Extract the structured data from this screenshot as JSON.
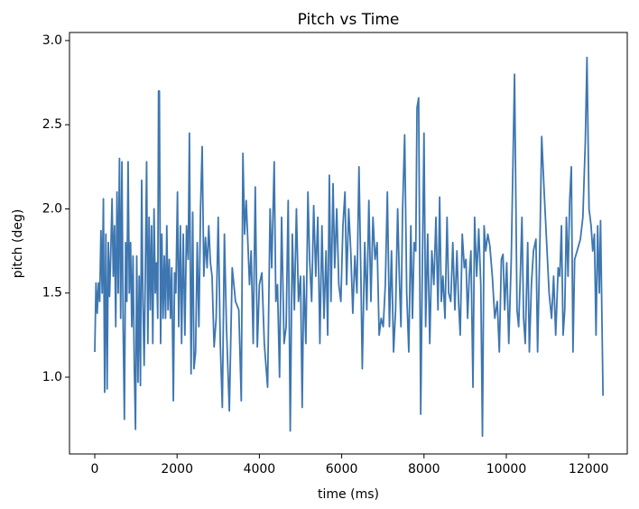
{
  "chart_data": {
    "type": "line",
    "title": "Pitch vs Time",
    "xlabel": "time (ms)",
    "ylabel": "pitch (deg)",
    "color": "#3d76b0",
    "xlim": [
      -614,
      12939
    ],
    "ylim": [
      0.544,
      3.048
    ],
    "xticks": [
      0,
      2000,
      4000,
      6000,
      8000,
      10000,
      12000
    ],
    "yticks": [
      {
        "value": 1,
        "label": "1.0"
      },
      1.5,
      {
        "value": 2,
        "label": "2.0"
      },
      2.5,
      {
        "value": 3,
        "label": "3.0"
      }
    ],
    "x": [
      0,
      30,
      60,
      90,
      120,
      150,
      180,
      210,
      240,
      270,
      300,
      330,
      360,
      390,
      420,
      450,
      480,
      510,
      540,
      570,
      600,
      630,
      660,
      690,
      720,
      750,
      780,
      810,
      840,
      870,
      900,
      930,
      960,
      990,
      1020,
      1050,
      1080,
      1110,
      1140,
      1170,
      1200,
      1230,
      1260,
      1290,
      1320,
      1350,
      1380,
      1410,
      1440,
      1470,
      1500,
      1530,
      1550,
      1570,
      1600,
      1630,
      1660,
      1690,
      1720,
      1750,
      1780,
      1810,
      1840,
      1870,
      1910,
      1940,
      1970,
      2010,
      2040,
      2080,
      2110,
      2150,
      2190,
      2230,
      2270,
      2300,
      2340,
      2380,
      2410,
      2450,
      2490,
      2530,
      2570,
      2610,
      2650,
      2690,
      2730,
      2770,
      2810,
      2850,
      2900,
      2950,
      3000,
      3050,
      3100,
      3150,
      3200,
      3270,
      3340,
      3420,
      3500,
      3560,
      3600,
      3640,
      3680,
      3720,
      3760,
      3800,
      3850,
      3900,
      3950,
      4000,
      4060,
      4120,
      4200,
      4260,
      4300,
      4360,
      4400,
      4440,
      4490,
      4540,
      4600,
      4650,
      4700,
      4750,
      4800,
      4850,
      4900,
      4950,
      5000,
      5040,
      5080,
      5130,
      5180,
      5220,
      5270,
      5320,
      5370,
      5420,
      5470,
      5520,
      5570,
      5620,
      5660,
      5700,
      5740,
      5790,
      5830,
      5880,
      5930,
      5980,
      6030,
      6080,
      6120,
      6170,
      6220,
      6270,
      6320,
      6370,
      6420,
      6470,
      6500,
      6560,
      6610,
      6660,
      6710,
      6760,
      6810,
      6860,
      6910,
      6960,
      7010,
      7060,
      7110,
      7160,
      7210,
      7260,
      7310,
      7360,
      7400,
      7440,
      7480,
      7530,
      7580,
      7630,
      7680,
      7720,
      7760,
      7800,
      7830,
      7870,
      7920,
      7960,
      8000,
      8040,
      8090,
      8140,
      8190,
      8240,
      8290,
      8340,
      8380,
      8420,
      8460,
      8510,
      8560,
      8600,
      8650,
      8700,
      8750,
      8800,
      8840,
      8880,
      8930,
      8980,
      9020,
      9060,
      9100,
      9140,
      9190,
      9230,
      9280,
      9330,
      9380,
      9420,
      9460,
      9500,
      9550,
      9600,
      9660,
      9720,
      9780,
      9830,
      9880,
      9920,
      9960,
      10010,
      10060,
      10120,
      10200,
      10260,
      10300,
      10340,
      10380,
      10420,
      10460,
      10520,
      10560,
      10610,
      10660,
      10720,
      10760,
      10820,
      10860,
      10920,
      10980,
      11040,
      11100,
      11150,
      11200,
      11260,
      11300,
      11340,
      11380,
      11420,
      11460,
      11500,
      11540,
      11580,
      11620,
      11660,
      11720,
      11800,
      11860,
      11920,
      11960,
      12010,
      12060,
      12100,
      12140,
      12180,
      12220,
      12260,
      12290,
      12350
    ],
    "values": [
      1.15,
      1.56,
      1.38,
      1.56,
      1.45,
      1.87,
      1.5,
      2.06,
      0.91,
      1.85,
      0.93,
      1.8,
      1.48,
      1.75,
      2.06,
      1.6,
      1.9,
      1.3,
      2.1,
      1.5,
      2.3,
      1.35,
      2.28,
      1.3,
      0.75,
      1.8,
      1.45,
      2.28,
      1.5,
      1.8,
      1.3,
      1.72,
      1.07,
      0.69,
      1.72,
      0.97,
      1.6,
      0.95,
      2.17,
      1.45,
      1.07,
      1.65,
      2.28,
      1.2,
      1.95,
      1.4,
      1.9,
      1.2,
      2.0,
      1.5,
      1.68,
      1.35,
      2.7,
      2.7,
      1.2,
      1.85,
      1.35,
      1.72,
      1.35,
      1.9,
      1.4,
      1.7,
      1.35,
      1.65,
      0.86,
      1.62,
      1.5,
      2.1,
      1.3,
      1.9,
      1.2,
      1.85,
      1.25,
      1.9,
      1.7,
      2.45,
      1.02,
      1.98,
      1.05,
      1.15,
      1.8,
      1.3,
      2.0,
      2.37,
      1.6,
      1.83,
      1.65,
      1.9,
      1.68,
      1.6,
      1.18,
      1.35,
      1.95,
      1.2,
      0.82,
      1.85,
      1.3,
      0.8,
      1.65,
      1.45,
      1.4,
      0.86,
      2.33,
      1.85,
      2.05,
      1.8,
      1.55,
      1.75,
      1.2,
      2.13,
      1.18,
      1.55,
      1.62,
      1.2,
      0.94,
      2.0,
      1.65,
      2.28,
      1.45,
      1.55,
      1.0,
      1.95,
      1.2,
      1.3,
      2.05,
      0.68,
      1.85,
      1.4,
      2.0,
      1.45,
      1.6,
      0.82,
      1.6,
      1.2,
      2.1,
      1.7,
      1.45,
      2.02,
      1.6,
      1.95,
      1.2,
      1.9,
      1.35,
      1.75,
      1.25,
      2.2,
      1.45,
      2.15,
      1.65,
      2.0,
      1.55,
      1.45,
      1.9,
      2.1,
      1.55,
      2.0,
      1.75,
      1.38,
      1.72,
      1.5,
      2.25,
      1.55,
      1.05,
      1.8,
      1.4,
      2.05,
      1.45,
      1.95,
      1.7,
      1.8,
      1.25,
      1.35,
      1.3,
      1.55,
      2.1,
      1.3,
      1.75,
      1.15,
      1.4,
      2.0,
      1.6,
      1.3,
      2.0,
      2.44,
      1.5,
      1.15,
      1.9,
      1.35,
      1.8,
      1.75,
      2.6,
      2.66,
      0.78,
      1.65,
      2.45,
      1.3,
      1.85,
      1.2,
      1.75,
      1.55,
      1.95,
      1.4,
      2.07,
      1.45,
      1.6,
      1.35,
      1.95,
      1.5,
      1.45,
      1.8,
      1.4,
      1.75,
      1.45,
      1.25,
      1.85,
      1.65,
      1.7,
      1.35,
      1.6,
      1.75,
      0.94,
      1.95,
      1.6,
      1.88,
      1.55,
      0.65,
      1.9,
      1.75,
      1.85,
      1.78,
      1.6,
      1.35,
      1.45,
      1.15,
      1.7,
      1.73,
      1.4,
      1.68,
      1.2,
      1.7,
      2.8,
      1.4,
      1.3,
      1.6,
      1.95,
      1.35,
      1.2,
      1.8,
      1.15,
      1.55,
      1.75,
      1.82,
      1.15,
      1.85,
      2.43,
      2.1,
      1.8,
      1.5,
      1.35,
      1.6,
      1.25,
      1.65,
      1.6,
      1.9,
      1.25,
      1.4,
      1.95,
      1.6,
      2.05,
      2.25,
      1.15,
      1.7,
      1.75,
      1.82,
      1.95,
      2.4,
      2.9,
      2.0,
      1.9,
      1.75,
      1.85,
      1.25,
      1.9,
      1.5,
      1.93,
      0.89
    ]
  }
}
